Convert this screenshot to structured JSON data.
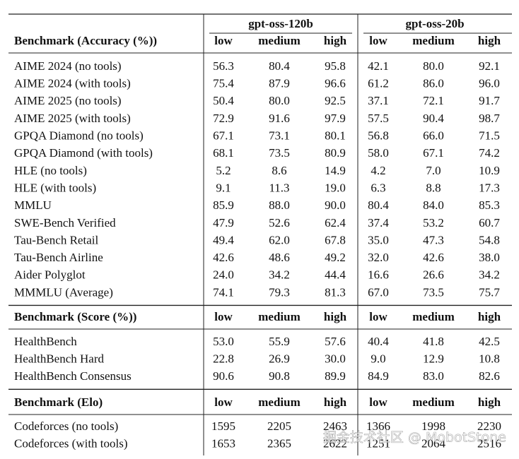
{
  "table": {
    "model_headers": [
      "gpt-oss-120b",
      "gpt-oss-20b"
    ],
    "sections": [
      {
        "header": [
          "Benchmark (Accuracy (%))",
          "low",
          "medium",
          "high",
          "low",
          "medium",
          "high"
        ],
        "rows": [
          [
            "AIME 2024 (no tools)",
            "56.3",
            "80.4",
            "95.8",
            "42.1",
            "80.0",
            "92.1"
          ],
          [
            "AIME 2024 (with tools)",
            "75.4",
            "87.9",
            "96.6",
            "61.2",
            "86.0",
            "96.0"
          ],
          [
            "AIME 2025 (no tools)",
            "50.4",
            "80.0",
            "92.5",
            "37.1",
            "72.1",
            "91.7"
          ],
          [
            "AIME 2025 (with tools)",
            "72.9",
            "91.6",
            "97.9",
            "57.5",
            "90.4",
            "98.7"
          ],
          [
            "GPQA Diamond (no tools)",
            "67.1",
            "73.1",
            "80.1",
            "56.8",
            "66.0",
            "71.5"
          ],
          [
            "GPQA Diamond (with tools)",
            "68.1",
            "73.5",
            "80.9",
            "58.0",
            "67.1",
            "74.2"
          ],
          [
            "HLE (no tools)",
            "5.2",
            "8.6",
            "14.9",
            "4.2",
            "7.0",
            "10.9"
          ],
          [
            "HLE (with tools)",
            "9.1",
            "11.3",
            "19.0",
            "6.3",
            "8.8",
            "17.3"
          ],
          [
            "MMLU",
            "85.9",
            "88.0",
            "90.0",
            "80.4",
            "84.0",
            "85.3"
          ],
          [
            "SWE-Bench Verified",
            "47.9",
            "52.6",
            "62.4",
            "37.4",
            "53.2",
            "60.7"
          ],
          [
            "Tau-Bench Retail",
            "49.4",
            "62.0",
            "67.8",
            "35.0",
            "47.3",
            "54.8"
          ],
          [
            "Tau-Bench Airline",
            "42.6",
            "48.6",
            "49.2",
            "32.0",
            "42.6",
            "38.0"
          ],
          [
            "Aider Polyglot",
            "24.0",
            "34.2",
            "44.4",
            "16.6",
            "26.6",
            "34.2"
          ],
          [
            "MMMLU (Average)",
            "74.1",
            "79.3",
            "81.3",
            "67.0",
            "73.5",
            "75.7"
          ]
        ]
      },
      {
        "header": [
          "Benchmark (Score (%))",
          "low",
          "medium",
          "high",
          "low",
          "medium",
          "high"
        ],
        "rows": [
          [
            "HealthBench",
            "53.0",
            "55.9",
            "57.6",
            "40.4",
            "41.8",
            "42.5"
          ],
          [
            "HealthBench Hard",
            "22.8",
            "26.9",
            "30.0",
            "9.0",
            "12.9",
            "10.8"
          ],
          [
            "HealthBench Consensus",
            "90.6",
            "90.8",
            "89.9",
            "84.9",
            "83.0",
            "82.6"
          ]
        ]
      },
      {
        "header": [
          "Benchmark (Elo)",
          "low",
          "medium",
          "high",
          "low",
          "medium",
          "high"
        ],
        "rows": [
          [
            "Codeforces (no tools)",
            "1595",
            "2205",
            "2463",
            "1366",
            "1998",
            "2230"
          ],
          [
            "Codeforces (with tools)",
            "1653",
            "2365",
            "2622",
            "1251",
            "2064",
            "2516"
          ]
        ]
      }
    ]
  },
  "watermark": "掘金技术社区 @ MobotStone"
}
